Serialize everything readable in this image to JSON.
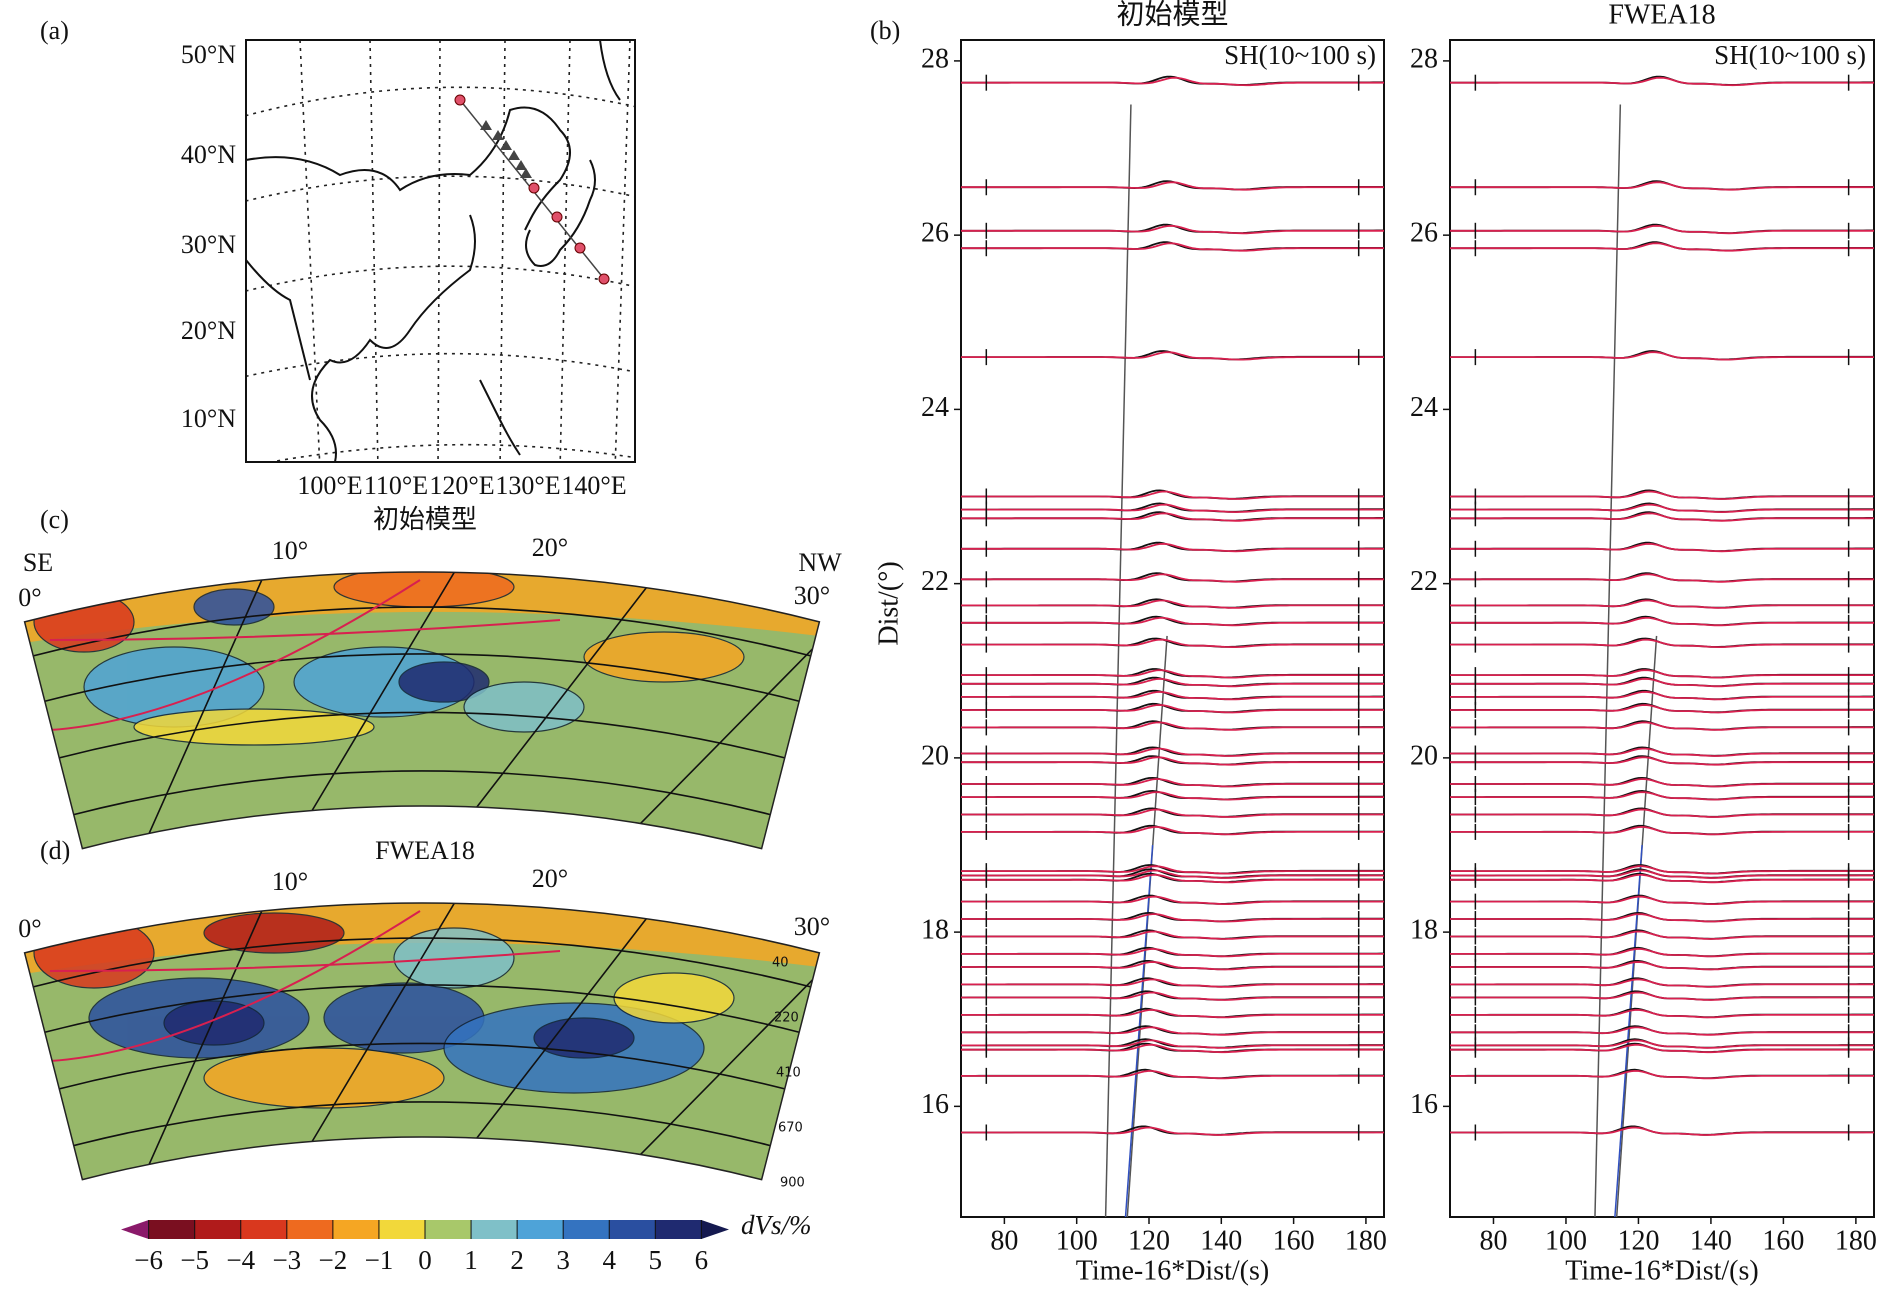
{
  "chart_data": [
    {
      "type": "waveform",
      "panel_label": "(b)",
      "title": "初始模型",
      "annotation": "SH(10~100 s)",
      "x_label": "Time-16*Dist/(s)",
      "y_label": "Dist/(°)",
      "xlim": [
        68,
        185
      ],
      "ylim": [
        14.73,
        28.24
      ],
      "xticks": [
        80,
        100,
        120,
        140,
        160,
        180
      ],
      "yticks": [
        16,
        18,
        20,
        22,
        24,
        26,
        28
      ],
      "series": [
        {
          "name": "data",
          "color": "#111111"
        },
        {
          "name": "synthetic",
          "color": "#d8204f"
        }
      ],
      "distances": [
        27.75,
        26.55,
        26.05,
        25.85,
        24.6,
        23.0,
        22.85,
        22.75,
        22.4,
        22.05,
        21.75,
        21.55,
        21.3,
        20.95,
        20.85,
        20.7,
        20.55,
        20.35,
        20.05,
        19.95,
        19.7,
        19.55,
        19.35,
        19.15,
        18.7,
        18.65,
        18.6,
        18.35,
        18.15,
        17.95,
        17.75,
        17.6,
        17.4,
        17.25,
        17.05,
        16.85,
        16.7,
        16.65,
        16.35,
        15.7
      ]
    },
    {
      "type": "waveform",
      "title": "FWEA18",
      "annotation": "SH(10~100 s)",
      "x_label": "Time-16*Dist/(s)",
      "xlim": [
        68,
        185
      ],
      "ylim": [
        14.73,
        28.24
      ],
      "xticks": [
        80,
        100,
        120,
        140,
        160,
        180
      ],
      "yticks": [
        16,
        18,
        20,
        22,
        24,
        26,
        28
      ],
      "series": [
        {
          "name": "data",
          "color": "#111111"
        },
        {
          "name": "synthetic",
          "color": "#d8204f"
        }
      ],
      "distances": [
        27.75,
        26.55,
        26.05,
        25.85,
        24.6,
        23.0,
        22.85,
        22.75,
        22.4,
        22.05,
        21.75,
        21.55,
        21.3,
        20.95,
        20.85,
        20.7,
        20.55,
        20.35,
        20.05,
        19.95,
        19.7,
        19.55,
        19.35,
        19.15,
        18.7,
        18.65,
        18.6,
        18.35,
        18.15,
        17.95,
        17.75,
        17.6,
        17.4,
        17.25,
        17.05,
        16.85,
        16.7,
        16.65,
        16.35,
        15.7
      ]
    },
    {
      "type": "colorbar",
      "x_label": "dVs/%",
      "xlim": [
        -6.6,
        6.6
      ],
      "xticks": [
        {
          "value": -6,
          "label": "−6"
        },
        {
          "value": -5,
          "label": "−5"
        },
        {
          "value": -4,
          "label": "−4"
        },
        {
          "value": -3,
          "label": "−3"
        },
        {
          "value": -2,
          "label": "−2"
        },
        {
          "value": -1,
          "label": "−1"
        },
        0,
        1,
        2,
        3,
        4,
        5,
        6
      ],
      "colors": [
        "#7a0f20",
        "#b01b1b",
        "#d9381e",
        "#ee6a1f",
        "#f5a623",
        "#f2d83a",
        "#a8c86a",
        "#7fc0c8",
        "#4ea3d8",
        "#3473c0",
        "#2a4fa0",
        "#1f2a70"
      ]
    }
  ],
  "map": {
    "panel_label": "(a)",
    "lat_labels": [
      "50°N",
      "40°N",
      "30°N",
      "20°N",
      "10°N"
    ],
    "lon_labels": [
      "100°E",
      "110°E",
      "120°E",
      "130°E",
      "140°E"
    ]
  },
  "sections": [
    {
      "panel_label": "(c)",
      "title": "初始模型",
      "left_label": "SE",
      "right_label": "NW",
      "angle_labels": [
        "0°",
        "10°",
        "20°",
        "30°"
      ]
    },
    {
      "panel_label": "(d)",
      "title": "FWEA18",
      "angle_labels": [
        "0°",
        "10°",
        "20°",
        "30°"
      ],
      "depth_labels": [
        "40",
        "220",
        "410",
        "670",
        "900"
      ]
    }
  ]
}
